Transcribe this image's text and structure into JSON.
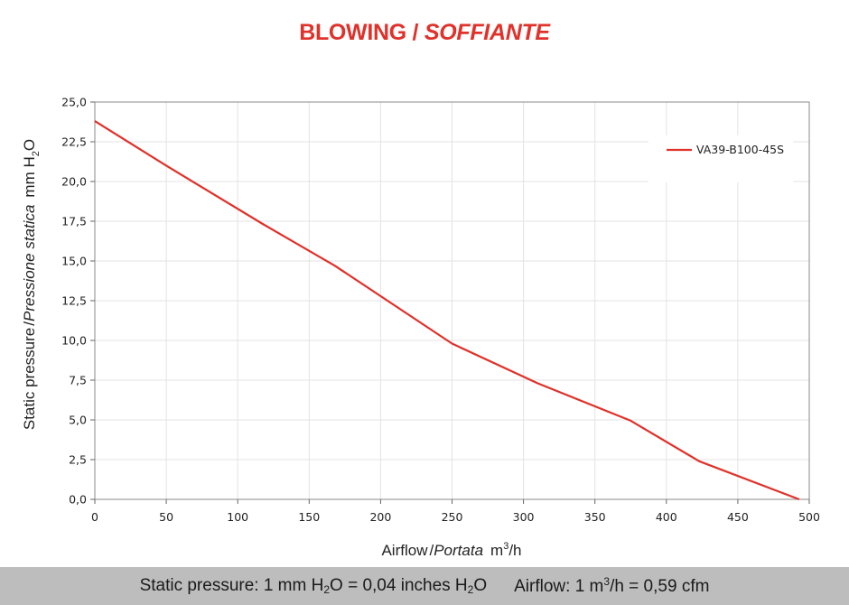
{
  "title": {
    "main": "BLOWING",
    "sep": " / ",
    "sub": "SOFFIANTE"
  },
  "chart_data": {
    "type": "line",
    "x_ticks": [
      "0",
      "50",
      "100",
      "150",
      "200",
      "250",
      "300",
      "350",
      "400",
      "450",
      "500"
    ],
    "y_ticks": [
      "0,0",
      "2,5",
      "5,0",
      "7,5",
      "10,0",
      "12,5",
      "15,0",
      "17,5",
      "20,0",
      "22,5",
      "25,0"
    ],
    "xlim": [
      0,
      500
    ],
    "ylim": [
      0,
      25
    ],
    "grid": true,
    "legend_position": "top-right",
    "xlabel": {
      "a": "Airflow",
      "b": "Portata",
      "unit_pre": "m",
      "unit_sup": "3",
      "unit_post": "/h"
    },
    "ylabel": {
      "a": "Static pressure",
      "b": "Pressione statica",
      "unit_pre": "mm  H",
      "unit_sub": "2",
      "unit_post": "O"
    },
    "series": [
      {
        "name": "VA39-B100-45S",
        "color": "#e0312a",
        "x": [
          0,
          50,
          118,
          168,
          250,
          310,
          375,
          423,
          493
        ],
        "y": [
          23.8,
          21.0,
          17.3,
          14.7,
          9.8,
          7.3,
          4.95,
          2.4,
          0.0
        ]
      }
    ]
  },
  "footer": {
    "sp_label": "Static pressure: 1 mm H",
    "sp_sub1": "2",
    "sp_mid": "O = 0,04 inches H",
    "sp_sub2": "2",
    "sp_end": "O",
    "af_label": "Airflow: 1 m",
    "af_sup": "3",
    "af_end": "/h = 0,59 cfm"
  }
}
